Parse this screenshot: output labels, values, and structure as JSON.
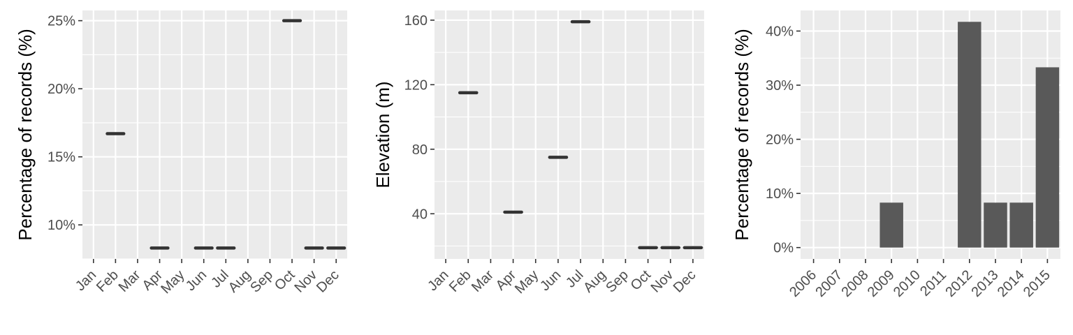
{
  "chart_data": [
    {
      "type": "boxplot",
      "ylabel": "Percentage of records (%)",
      "xlabel": "",
      "categories": [
        "Jan",
        "Feb",
        "Mar",
        "Apr",
        "May",
        "Jun",
        "Jul",
        "Aug",
        "Sep",
        "Oct",
        "Nov",
        "Dec"
      ],
      "values": [
        null,
        16.7,
        null,
        8.3,
        null,
        8.3,
        8.3,
        null,
        null,
        25.0,
        8.3,
        8.3
      ],
      "ylim": [
        7.5,
        25.75
      ],
      "yticks": [
        10,
        15,
        20,
        25
      ],
      "ytick_labels": [
        "10%",
        "15%",
        "20%",
        "25%"
      ],
      "grid": true,
      "bar_color": "#333333"
    },
    {
      "type": "boxplot",
      "ylabel": "Elevation (m)",
      "xlabel": "",
      "categories": [
        "Jan",
        "Feb",
        "Mar",
        "Apr",
        "May",
        "Jun",
        "Jul",
        "Aug",
        "Sep",
        "Oct",
        "Nov",
        "Dec"
      ],
      "values": [
        null,
        115,
        null,
        41,
        null,
        75,
        159,
        null,
        null,
        19,
        19,
        19
      ],
      "ylim": [
        12,
        166
      ],
      "yticks": [
        40,
        80,
        120,
        160
      ],
      "ytick_labels": [
        "40",
        "80",
        "120",
        "160"
      ],
      "grid": true,
      "bar_color": "#333333"
    },
    {
      "type": "bar",
      "ylabel": "Percentage of records (%)",
      "xlabel": "",
      "categories": [
        "2006",
        "2007",
        "2008",
        "2009",
        "2010",
        "2011",
        "2012",
        "2013",
        "2014",
        "2015"
      ],
      "values": [
        0,
        0,
        0,
        8.3,
        0,
        0,
        41.7,
        8.3,
        8.3,
        33.3
      ],
      "ylim": [
        -2.1,
        43.8
      ],
      "yticks": [
        0,
        10,
        20,
        30,
        40
      ],
      "ytick_labels": [
        "0%",
        "10%",
        "20%",
        "30%",
        "40%"
      ],
      "grid": true,
      "bar_color": "#595959"
    }
  ]
}
